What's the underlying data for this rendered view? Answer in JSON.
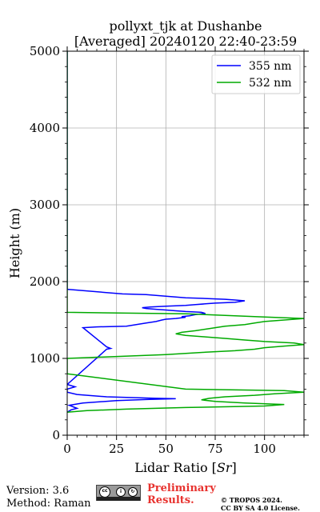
{
  "chart_data": {
    "type": "line",
    "title_line1": "pollyxt_tjk at Dushanbe",
    "title_line2": "[Averaged] 20240120 22:40-23:59",
    "xlabel": "Lidar Ratio [$Sr$]",
    "xlabel_parts": [
      "Lidar Ratio [",
      "Sr",
      "]"
    ],
    "ylabel": "Height (m)",
    "xlim": [
      0,
      120
    ],
    "ylim": [
      0,
      5000
    ],
    "xticks": [
      0,
      25,
      50,
      75,
      100
    ],
    "yticks": [
      0,
      1000,
      2000,
      3000,
      4000,
      5000
    ],
    "grid": true,
    "legend_position": "top-right",
    "series": [
      {
        "name": "355 nm",
        "color": "#0000ff",
        "x": [
          0,
          2,
          5,
          3,
          1,
          8,
          25,
          40,
          55,
          45,
          20,
          5,
          0,
          0,
          4,
          0,
          20,
          22,
          20,
          8,
          15,
          30,
          35,
          40,
          45,
          48,
          50,
          55,
          60,
          58,
          62,
          65,
          70,
          68,
          60,
          55,
          50,
          45,
          40,
          38,
          42,
          50,
          60,
          65,
          70,
          75,
          85,
          90,
          85,
          80,
          70,
          60,
          55,
          50,
          45,
          40,
          28,
          0,
          0
        ],
        "y": [
          300,
          330,
          350,
          370,
          390,
          420,
          450,
          465,
          475,
          480,
          500,
          530,
          560,
          600,
          630,
          660,
          1120,
          1130,
          1150,
          1400,
          1410,
          1420,
          1440,
          1460,
          1480,
          1500,
          1510,
          1520,
          1535,
          1545,
          1555,
          1570,
          1585,
          1600,
          1610,
          1620,
          1630,
          1640,
          1650,
          1660,
          1670,
          1680,
          1690,
          1700,
          1710,
          1720,
          1730,
          1750,
          1760,
          1770,
          1780,
          1790,
          1800,
          1810,
          1820,
          1830,
          1840,
          1900,
          5000
        ]
      },
      {
        "name": "532 nm",
        "color": "#00aa00",
        "x": [
          0,
          10,
          30,
          60,
          100,
          110,
          90,
          75,
          68,
          72,
          80,
          95,
          105,
          120,
          110,
          60,
          0,
          0,
          50,
          70,
          85,
          95,
          100,
          110,
          120,
          115,
          100,
          90,
          80,
          70,
          60,
          55,
          58,
          65,
          70,
          75,
          80,
          90,
          95,
          100,
          110,
          120,
          100,
          80,
          60,
          0,
          0
        ],
        "y": [
          300,
          320,
          340,
          360,
          380,
          400,
          420,
          440,
          460,
          480,
          500,
          520,
          540,
          560,
          580,
          600,
          800,
          1000,
          1050,
          1080,
          1100,
          1120,
          1140,
          1160,
          1180,
          1200,
          1220,
          1240,
          1260,
          1280,
          1300,
          1320,
          1340,
          1360,
          1380,
          1400,
          1420,
          1440,
          1460,
          1480,
          1500,
          1520,
          1540,
          1560,
          1580,
          1600,
          5000
        ]
      }
    ]
  },
  "footer": {
    "version": "Version: 3.6",
    "method": "Method: Raman",
    "prelim_line1": "Preliminary",
    "prelim_line2": "Results.",
    "copyright_line1": "© TROPOS 2024.",
    "copyright_line2": "CC BY SA 4.0 License."
  }
}
